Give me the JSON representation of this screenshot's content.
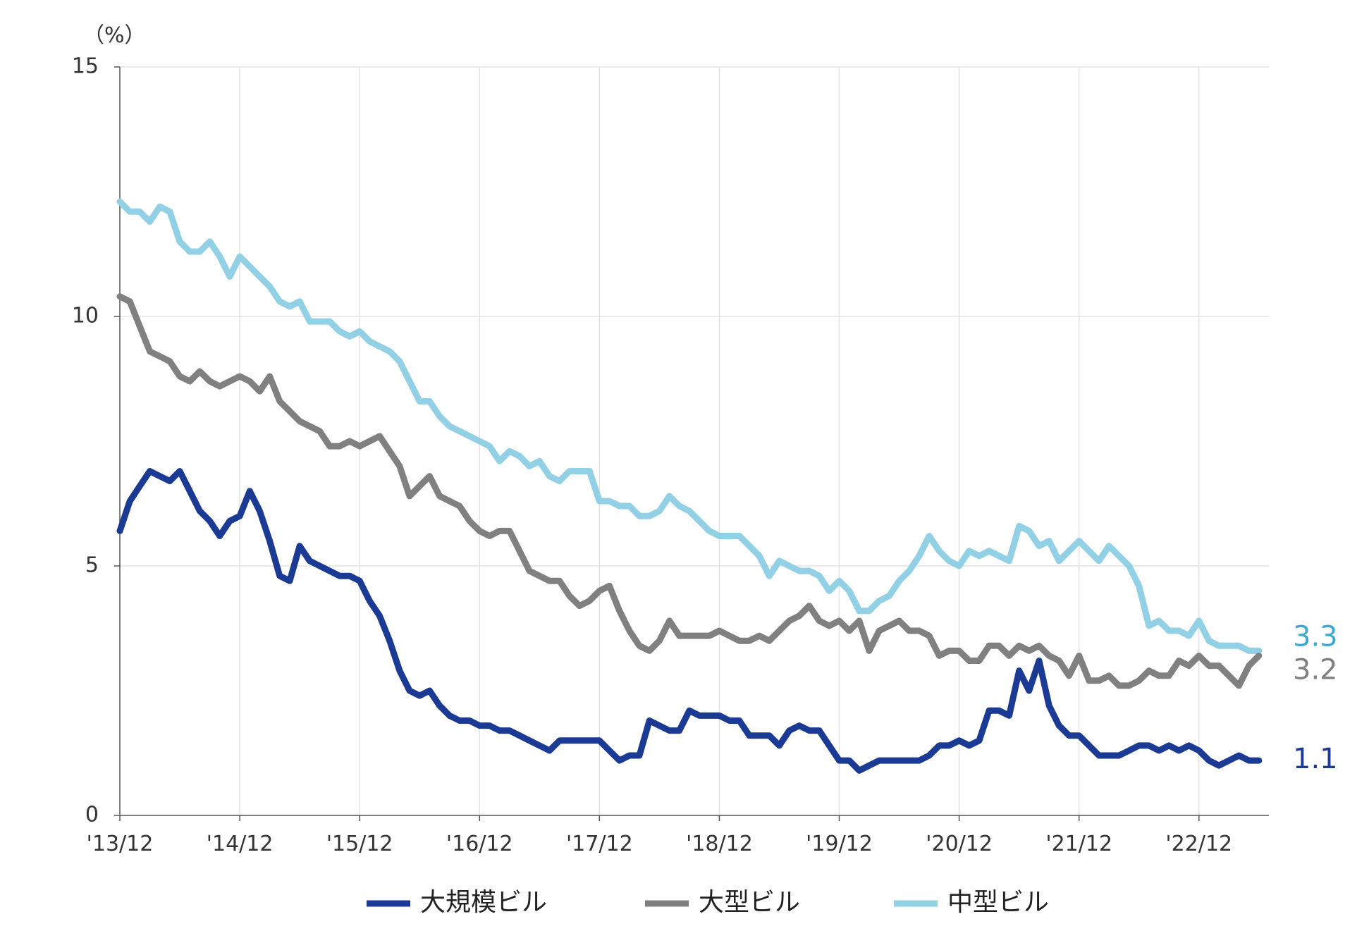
{
  "chart_data": {
    "type": "line",
    "y_unit": "（%）",
    "ylim": [
      0,
      15
    ],
    "yticks": [
      0,
      5,
      10,
      15
    ],
    "grid": true,
    "legend_position": "bottom",
    "x_ticks": [
      "'13/12",
      "'14/12",
      "'15/12",
      "'16/12",
      "'17/12",
      "'18/12",
      "'19/12",
      "'20/12",
      "'21/12",
      "'22/12"
    ],
    "x_start": 0,
    "x_end": 115,
    "x_tick_step": 12,
    "series": [
      {
        "name": "中型ビル",
        "color": "#92d0e6",
        "end_label": "3.3",
        "end_label_color": "#3aa8d1",
        "values": [
          12.3,
          12.1,
          12.1,
          11.9,
          12.2,
          12.1,
          11.5,
          11.3,
          11.3,
          11.5,
          11.2,
          10.8,
          11.2,
          11.0,
          10.8,
          10.6,
          10.3,
          10.2,
          10.3,
          9.9,
          9.9,
          9.9,
          9.7,
          9.6,
          9.7,
          9.5,
          9.4,
          9.3,
          9.1,
          8.7,
          8.3,
          8.3,
          8.0,
          7.8,
          7.7,
          7.6,
          7.5,
          7.4,
          7.1,
          7.3,
          7.2,
          7.0,
          7.1,
          6.8,
          6.7,
          6.9,
          6.9,
          6.9,
          6.3,
          6.3,
          6.2,
          6.2,
          6.0,
          6.0,
          6.1,
          6.4,
          6.2,
          6.1,
          5.9,
          5.7,
          5.6,
          5.6,
          5.6,
          5.4,
          5.2,
          4.8,
          5.1,
          5.0,
          4.9,
          4.9,
          4.8,
          4.5,
          4.7,
          4.5,
          4.1,
          4.1,
          4.3,
          4.4,
          4.7,
          4.9,
          5.2,
          5.6,
          5.3,
          5.1,
          5.0,
          5.3,
          5.2,
          5.3,
          5.2,
          5.1,
          5.8,
          5.7,
          5.4,
          5.5,
          5.1,
          5.3,
          5.5,
          5.3,
          5.1,
          5.4,
          5.2,
          5.0,
          4.6,
          3.8,
          3.9,
          3.7,
          3.7,
          3.6,
          3.9,
          3.5,
          3.4,
          3.4,
          3.4,
          3.3,
          3.3
        ]
      },
      {
        "name": "大型ビル",
        "color": "#808080",
        "end_label": "3.2",
        "end_label_color": "#7f7f7f",
        "values": [
          10.4,
          10.3,
          9.8,
          9.3,
          9.2,
          9.1,
          8.8,
          8.7,
          8.9,
          8.7,
          8.6,
          8.7,
          8.8,
          8.7,
          8.5,
          8.8,
          8.3,
          8.1,
          7.9,
          7.8,
          7.7,
          7.4,
          7.4,
          7.5,
          7.4,
          7.5,
          7.6,
          7.3,
          7.0,
          6.4,
          6.6,
          6.8,
          6.4,
          6.3,
          6.2,
          5.9,
          5.7,
          5.6,
          5.7,
          5.7,
          5.3,
          4.9,
          4.8,
          4.7,
          4.7,
          4.4,
          4.2,
          4.3,
          4.5,
          4.6,
          4.1,
          3.7,
          3.4,
          3.3,
          3.5,
          3.9,
          3.6,
          3.6,
          3.6,
          3.6,
          3.7,
          3.6,
          3.5,
          3.5,
          3.6,
          3.5,
          3.7,
          3.9,
          4.0,
          4.2,
          3.9,
          3.8,
          3.9,
          3.7,
          3.9,
          3.3,
          3.7,
          3.8,
          3.9,
          3.7,
          3.7,
          3.6,
          3.2,
          3.3,
          3.3,
          3.1,
          3.1,
          3.4,
          3.4,
          3.2,
          3.4,
          3.3,
          3.4,
          3.2,
          3.1,
          2.8,
          3.2,
          2.7,
          2.7,
          2.8,
          2.6,
          2.6,
          2.7,
          2.9,
          2.8,
          2.8,
          3.1,
          3.0,
          3.2,
          3.0,
          3.0,
          2.8,
          2.6,
          3.0,
          3.2
        ]
      },
      {
        "name": "大規模ビル",
        "color": "#1a3a94",
        "end_label": "1.1",
        "end_label_color": "#1a3a94",
        "values": [
          5.7,
          6.3,
          6.6,
          6.9,
          6.8,
          6.7,
          6.9,
          6.5,
          6.1,
          5.9,
          5.6,
          5.9,
          6.0,
          6.5,
          6.1,
          5.5,
          4.8,
          4.7,
          5.4,
          5.1,
          5.0,
          4.9,
          4.8,
          4.8,
          4.7,
          4.3,
          4.0,
          3.5,
          2.9,
          2.5,
          2.4,
          2.5,
          2.2,
          2.0,
          1.9,
          1.9,
          1.8,
          1.8,
          1.7,
          1.7,
          1.6,
          1.5,
          1.4,
          1.3,
          1.5,
          1.5,
          1.5,
          1.5,
          1.5,
          1.3,
          1.1,
          1.2,
          1.2,
          1.9,
          1.8,
          1.7,
          1.7,
          2.1,
          2.0,
          2.0,
          2.0,
          1.9,
          1.9,
          1.6,
          1.6,
          1.6,
          1.4,
          1.7,
          1.8,
          1.7,
          1.7,
          1.4,
          1.1,
          1.1,
          0.9,
          1.0,
          1.1,
          1.1,
          1.1,
          1.1,
          1.1,
          1.2,
          1.4,
          1.4,
          1.5,
          1.4,
          1.5,
          2.1,
          2.1,
          2.0,
          2.9,
          2.5,
          3.1,
          2.2,
          1.8,
          1.6,
          1.6,
          1.4,
          1.2,
          1.2,
          1.2,
          1.3,
          1.4,
          1.4,
          1.3,
          1.4,
          1.3,
          1.4,
          1.3,
          1.1,
          1.0,
          1.1,
          1.2,
          1.1,
          1.1
        ]
      }
    ],
    "legend_order": [
      "大規模ビル",
      "大型ビル",
      "中型ビル"
    ]
  }
}
